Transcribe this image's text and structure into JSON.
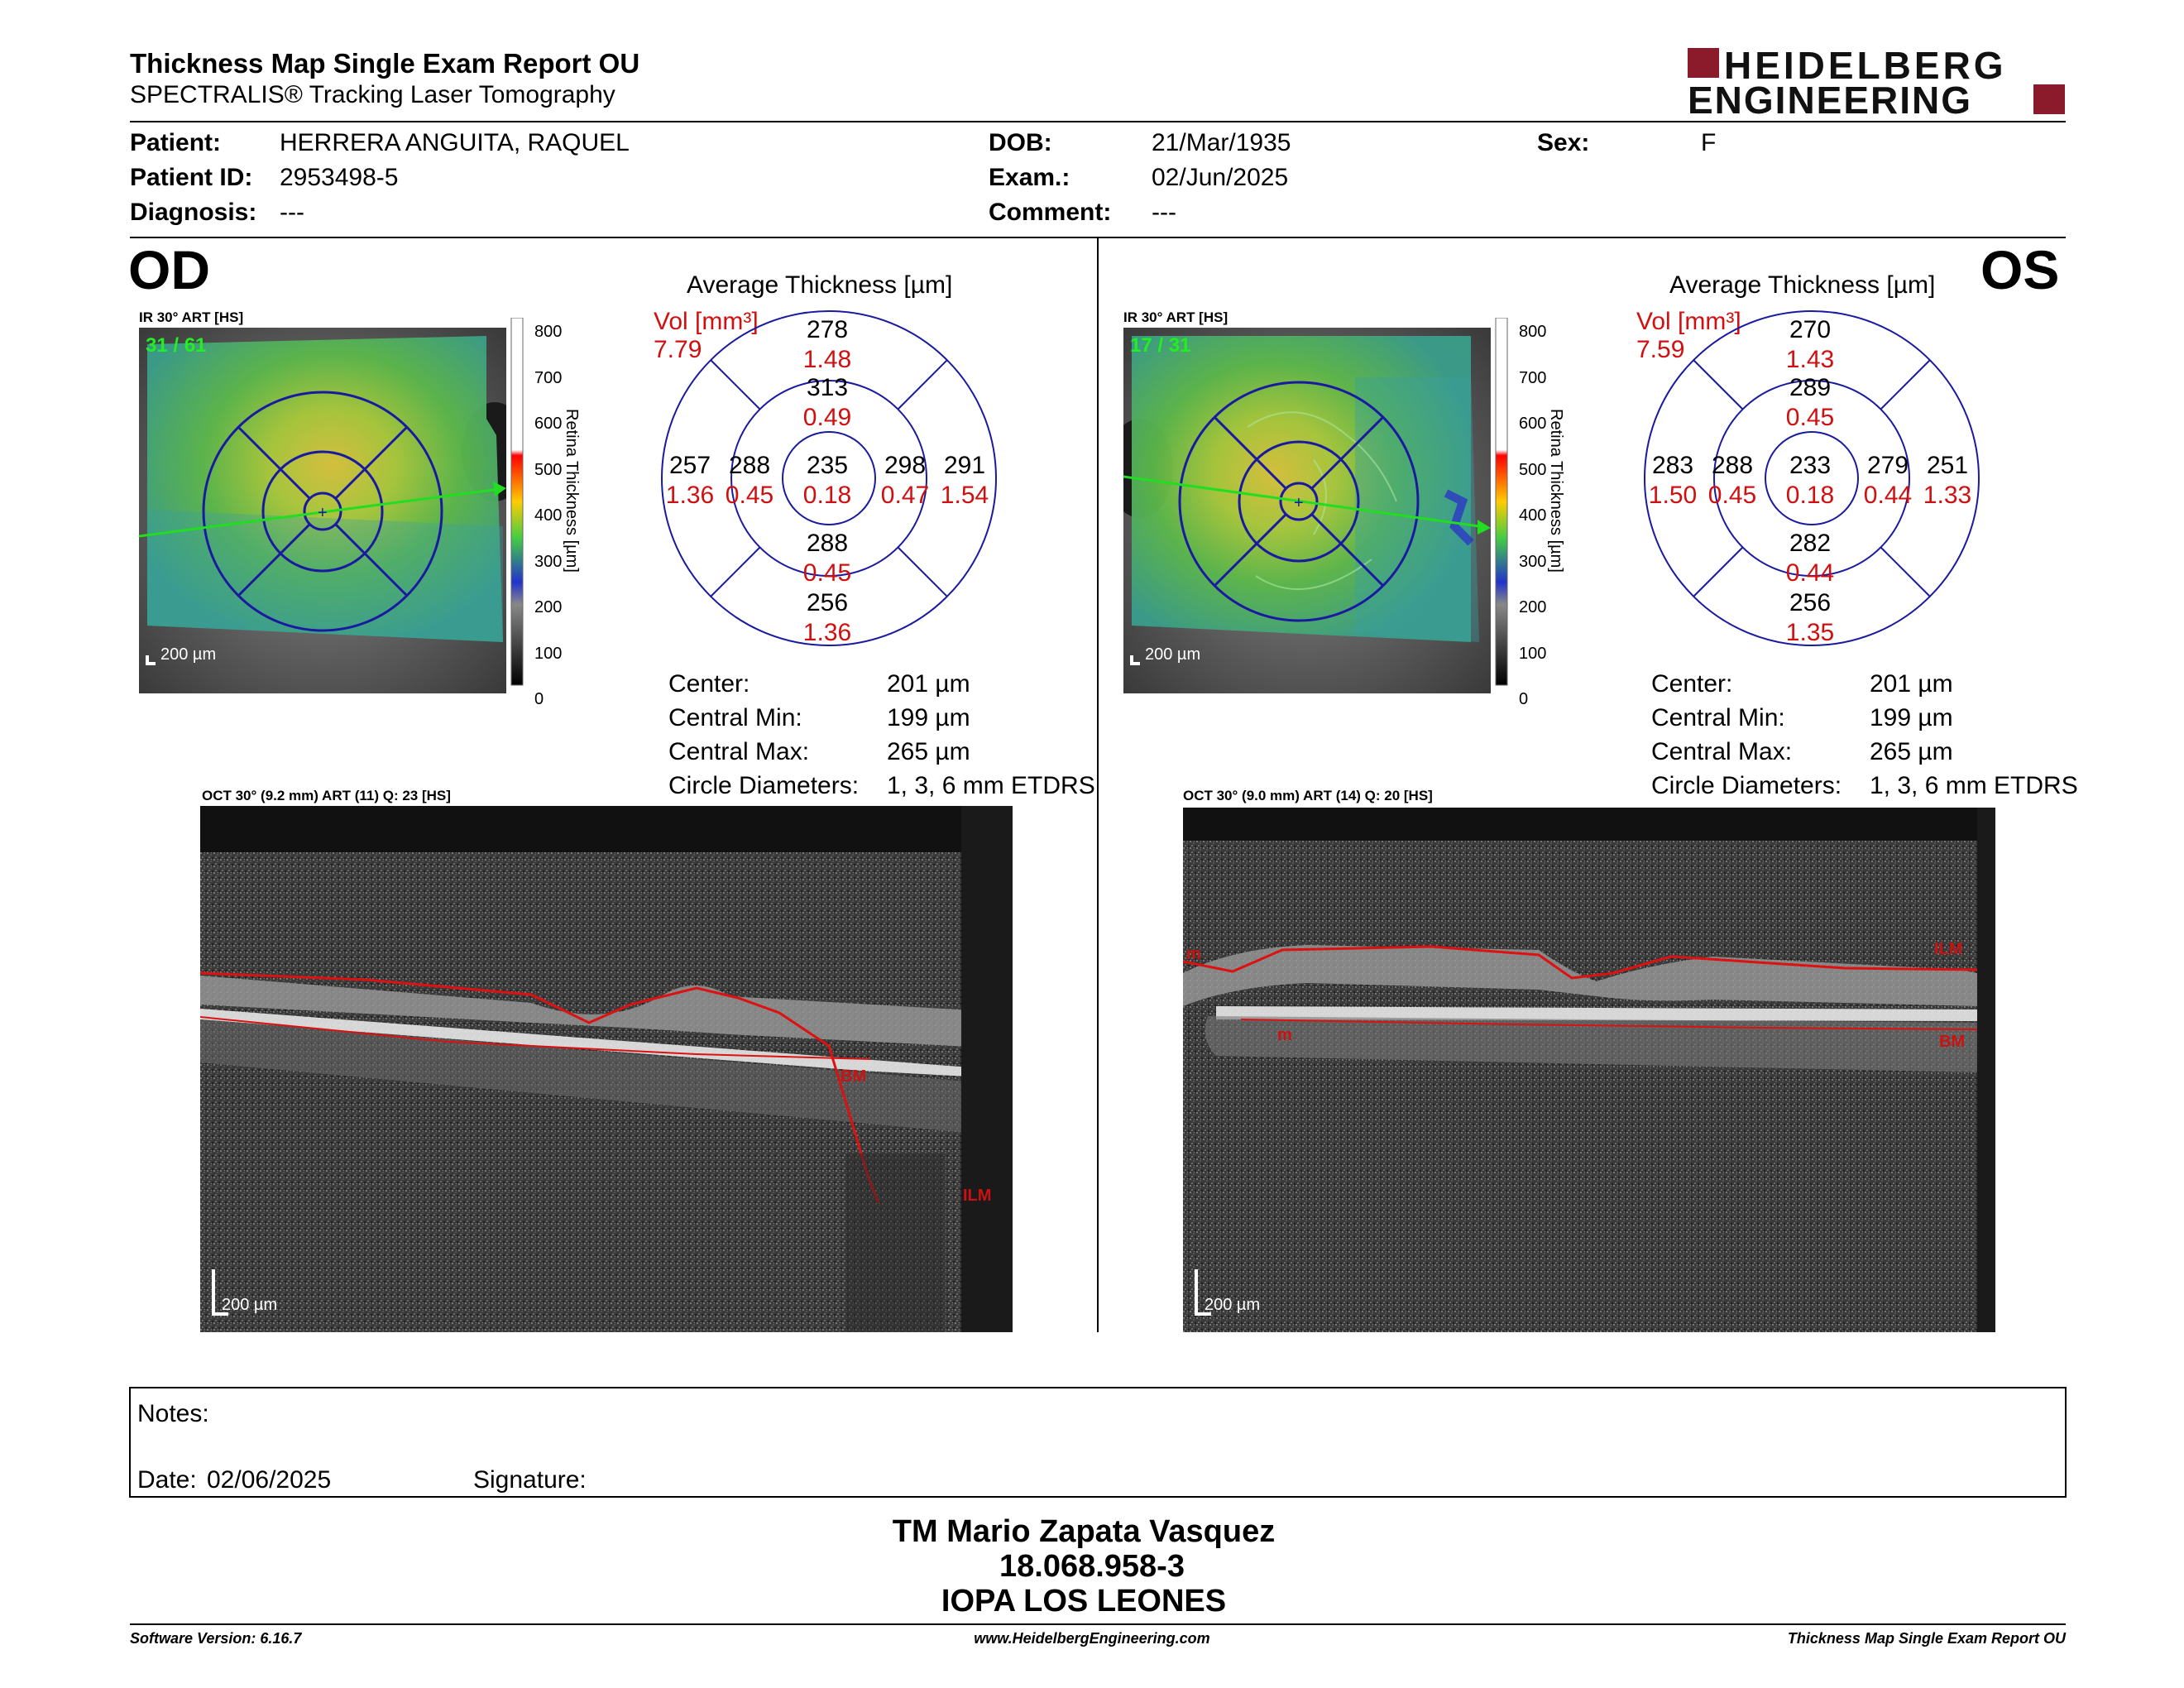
{
  "header": {
    "title": "Thickness Map Single Exam Report OU",
    "subtitle": "SPECTRALIS® Tracking Laser Tomography",
    "logo_line1": "HEIDELBERG",
    "logo_line2": "ENGINEERING",
    "brand_color": "#8b1a2b"
  },
  "patient": {
    "patient_label": "Patient:",
    "patient_value": "HERRERA ANGUITA, RAQUEL",
    "id_label": "Patient ID:",
    "id_value": "2953498-5",
    "diagnosis_label": "Diagnosis:",
    "diagnosis_value": "---",
    "dob_label": "DOB:",
    "dob_value": "21/Mar/1935",
    "exam_label": "Exam.:",
    "exam_value": "02/Jun/2025",
    "comment_label": "Comment:",
    "comment_value": "---",
    "sex_label": "Sex:",
    "sex_value": "F"
  },
  "od": {
    "eye": "OD",
    "ir_label": "IR 30° ART [HS]",
    "frames": "31 / 61",
    "scalebar": "200 µm",
    "avg_title": "Average Thickness [µm]",
    "vol_label": "Vol [mm³]",
    "vol_value": "7.79",
    "sectors": {
      "center": {
        "t": "235",
        "v": "0.18"
      },
      "inner_sup": {
        "t": "313",
        "v": "0.49"
      },
      "inner_inf": {
        "t": "288",
        "v": "0.45"
      },
      "inner_left": {
        "t": "288",
        "v": "0.45"
      },
      "inner_right": {
        "t": "298",
        "v": "0.47"
      },
      "outer_sup": {
        "t": "278",
        "v": "1.48"
      },
      "outer_inf": {
        "t": "256",
        "v": "1.36"
      },
      "outer_left": {
        "t": "257",
        "v": "1.36"
      },
      "outer_right": {
        "t": "291",
        "v": "1.54"
      }
    },
    "center_label": "Center:",
    "center_value": "201 µm",
    "min_label": "Central Min:",
    "min_value": "199 µm",
    "max_label": "Central Max:",
    "max_value": "265 µm",
    "diam_label": "Circle Diameters:",
    "diam_value": "1, 3, 6 mm ETDRS",
    "oct_label": "OCT 30° (9.2 mm) ART (11) Q: 23 [HS]",
    "oct_scalebar": "200 µm",
    "layer_bm": "BM",
    "layer_ilm": "ILM"
  },
  "os": {
    "eye": "OS",
    "ir_label": "IR 30° ART [HS]",
    "frames": "17 / 31",
    "scalebar": "200 µm",
    "avg_title": "Average Thickness [µm]",
    "vol_label": "Vol [mm³]",
    "vol_value": "7.59",
    "sectors": {
      "center": {
        "t": "233",
        "v": "0.18"
      },
      "inner_sup": {
        "t": "289",
        "v": "0.45"
      },
      "inner_inf": {
        "t": "282",
        "v": "0.44"
      },
      "inner_left": {
        "t": "288",
        "v": "0.45"
      },
      "inner_right": {
        "t": "279",
        "v": "0.44"
      },
      "outer_sup": {
        "t": "270",
        "v": "1.43"
      },
      "outer_inf": {
        "t": "256",
        "v": "1.35"
      },
      "outer_left": {
        "t": "283",
        "v": "1.50"
      },
      "outer_right": {
        "t": "251",
        "v": "1.33"
      }
    },
    "center_label": "Center:",
    "center_value": "201 µm",
    "min_label": "Central Min:",
    "min_value": "199 µm",
    "max_label": "Central Max:",
    "max_value": "265 µm",
    "diam_label": "Circle Diameters:",
    "diam_value": "1, 3, 6 mm ETDRS",
    "oct_label": "OCT 30° (9.0 mm) ART (14) Q: 20 [HS]",
    "oct_scalebar": "200 µm",
    "layer_bm": "BM",
    "layer_ilm": "ILM",
    "layer_m1": "m",
    "layer_m2": "m"
  },
  "colorbar": {
    "ticks": [
      "800",
      "700",
      "600",
      "500",
      "400",
      "300",
      "200",
      "100",
      "0"
    ],
    "label": "Retina  Thickness [µm]"
  },
  "notes": {
    "notes_label": "Notes:",
    "date_label": "Date:",
    "date_value": "02/06/2025",
    "signature_label": "Signature:"
  },
  "signature_block": {
    "name": "TM Mario Zapata Vasquez",
    "rut": "18.068.958-3",
    "org": "IOPA LOS LEONES"
  },
  "footer": {
    "software": "Software Version: 6.16.7",
    "website": "www.HeidelbergEngineering.com",
    "report": "Thickness Map Single Exam Report OU"
  }
}
